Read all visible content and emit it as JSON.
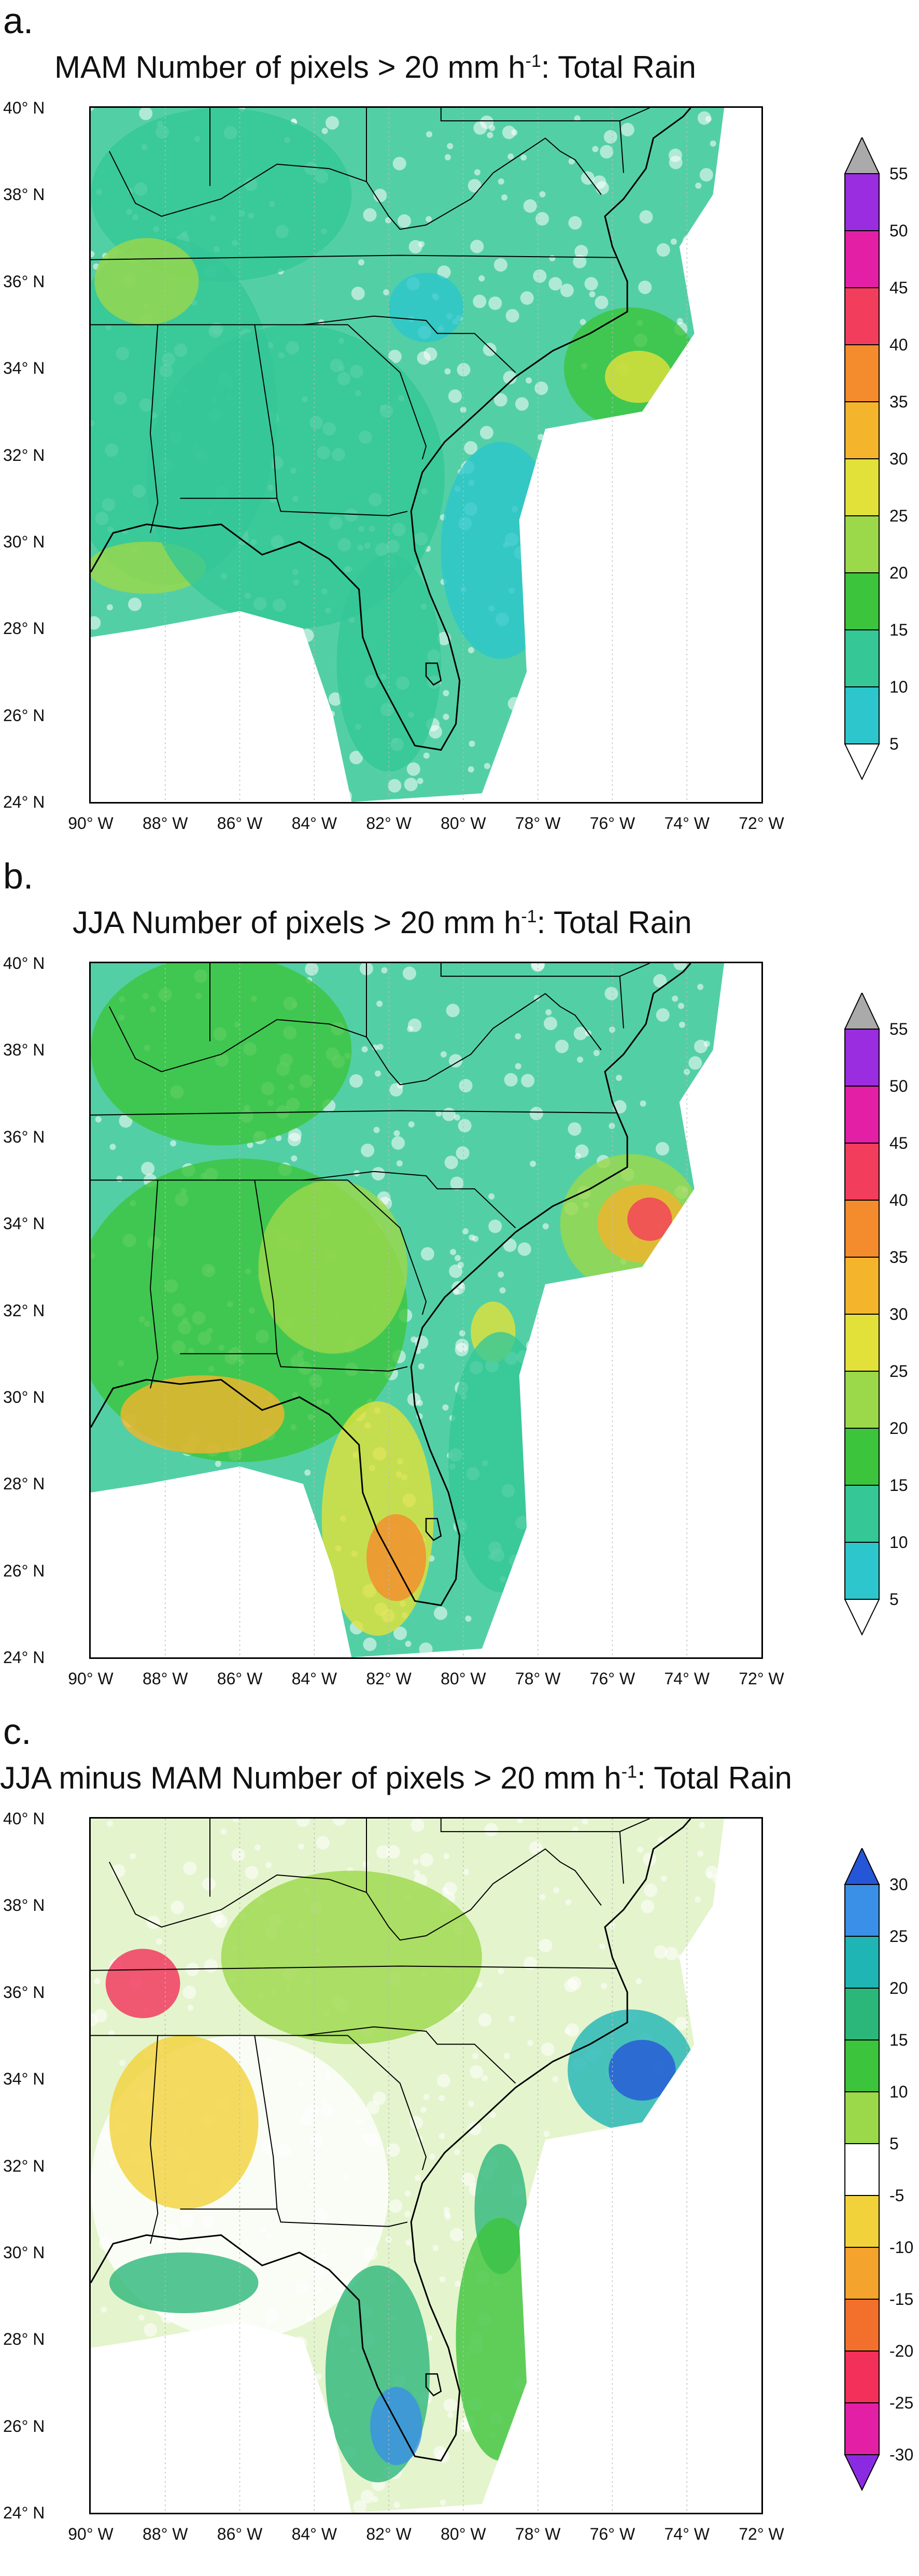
{
  "panels": [
    {
      "label": "a.",
      "title_main": "MAM  Number of pixels > 20 mm h",
      "title_sup": "-1",
      "title_tail": ":  Total Rain",
      "variable": "MAM",
      "colorbar": {
        "labels": [
          "55",
          "50",
          "45",
          "40",
          "35",
          "30",
          "25",
          "20",
          "15",
          "10",
          "5"
        ],
        "colors": [
          "#aaaaaa",
          "#9a2de0",
          "#e21fa5",
          "#f23d5d",
          "#f48b2c",
          "#f4b42c",
          "#e2e13a",
          "#9bd84a",
          "#3cc43c",
          "#35c796",
          "#2cc6cc",
          "#ffffff"
        ]
      }
    },
    {
      "label": "b.",
      "title_main": "JJA  Number of pixels > 20 mm h",
      "title_sup": "-1",
      "title_tail": ":  Total Rain",
      "variable": "JJA",
      "colorbar": {
        "labels": [
          "55",
          "50",
          "45",
          "40",
          "35",
          "30",
          "25",
          "20",
          "15",
          "10",
          "5"
        ],
        "colors": [
          "#aaaaaa",
          "#9a2de0",
          "#e21fa5",
          "#f23d5d",
          "#f48b2c",
          "#f4b42c",
          "#e2e13a",
          "#9bd84a",
          "#3cc43c",
          "#35c796",
          "#2cc6cc",
          "#ffffff"
        ]
      }
    },
    {
      "label": "c.",
      "title_main": "JJA minus MAM  Number of pixels > 20 mm h",
      "title_sup": "-1",
      "title_tail": ":  Total Rain",
      "variable": "DIFF",
      "colorbar": {
        "labels": [
          "30",
          "25",
          "20",
          "15",
          "10",
          "5",
          "-5",
          "-10",
          "-15",
          "-20",
          "-25",
          "-30"
        ],
        "colors": [
          "#2656d8",
          "#3a8fe6",
          "#1fb5b5",
          "#2cb77a",
          "#3cc43c",
          "#9bd84a",
          "#ffffff",
          "#f2d23a",
          "#f4a32c",
          "#f2702c",
          "#f2305a",
          "#e21fa5",
          "#8a2be2"
        ]
      }
    }
  ],
  "axes": {
    "y_ticks": [
      "40° N",
      "38° N",
      "36° N",
      "34° N",
      "32° N",
      "30° N",
      "28° N",
      "26° N",
      "24° N"
    ],
    "x_ticks": [
      "90° W",
      "88° W",
      "86° W",
      "84° W",
      "82° W",
      "80° W",
      "78° W",
      "76° W",
      "74° W",
      "72° W"
    ],
    "lon_range": [
      -90,
      -72
    ],
    "lat_range": [
      24,
      40
    ]
  }
}
